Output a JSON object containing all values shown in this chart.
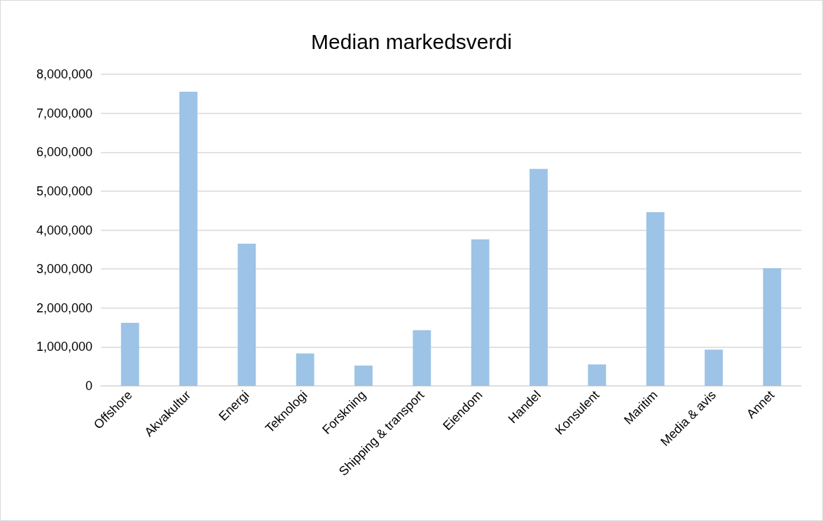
{
  "chart_data": {
    "type": "bar",
    "title": "Median markedsverdi",
    "categories": [
      "Offshore",
      "Akvakultur",
      "Energi",
      "Teknologi",
      "Forskning",
      "Shipping & transport",
      "Eiendom",
      "Handel",
      "Konsulent",
      "Maritim",
      "Media & avis",
      "Annet"
    ],
    "values": [
      1620000,
      7550000,
      3650000,
      830000,
      520000,
      1430000,
      3760000,
      5570000,
      550000,
      4460000,
      930000,
      3020000
    ],
    "color": "#9dc3e6",
    "ylim": [
      0,
      8000000
    ],
    "yticks": [
      0,
      {
        "value": 1000000,
        "label": "1,000,000"
      },
      {
        "value": 2000000,
        "label": "2,000,000"
      },
      {
        "value": 3000000,
        "label": "3,000,000"
      },
      {
        "value": 4000000,
        "label": "4,000,000"
      },
      {
        "value": 5000000,
        "label": "5,000,000"
      },
      {
        "value": 6000000,
        "label": "6,000,000"
      },
      {
        "value": 7000000,
        "label": "7,000,000"
      },
      {
        "value": 8000000,
        "label": "8,000,000"
      }
    ],
    "grid": "y"
  }
}
